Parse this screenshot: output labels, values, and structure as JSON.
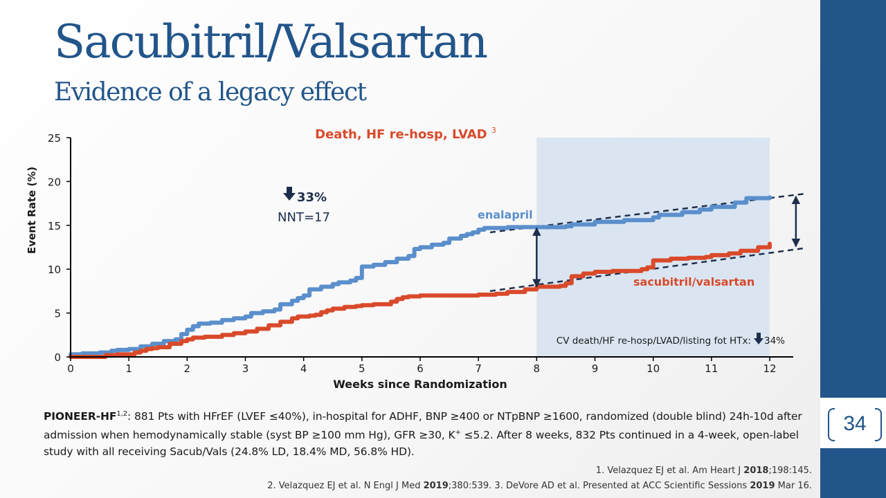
{
  "slide": {
    "title": "Sacubitril/Valsartan",
    "subtitle": "Evidence of a legacy effect",
    "page_number": "34"
  },
  "colors": {
    "title": "#22558a",
    "enalapril": "#5b8fcc",
    "sacubitril_valsartan": "#d94a2b",
    "highlight_region": "#dae5f1",
    "chart_title": "#d94a2b"
  },
  "annotations": {
    "reduction_value": "33%",
    "nnt": "NNT=17",
    "cv_death_text": "CV death/HF re-hosp/LVAD/listing fot HTx:",
    "cv_death_value": "34%"
  },
  "chart_data": {
    "type": "line",
    "title": "Death, HF re-hosp, LVAD",
    "title_superscript": "3",
    "xlabel": "Weeks since Randomization",
    "ylabel": "Event Rate (%)",
    "xlim": [
      0,
      12
    ],
    "ylim": [
      0,
      25
    ],
    "xticks": [
      0,
      1,
      2,
      3,
      4,
      5,
      6,
      7,
      8,
      9,
      10,
      11,
      12
    ],
    "yticks": [
      0,
      5,
      10,
      15,
      20,
      25
    ],
    "grid": false,
    "highlight_x_range": [
      8,
      12
    ],
    "series": [
      {
        "name": "enalapril",
        "x": [
          0,
          0.2,
          0.5,
          0.7,
          0.8,
          1.0,
          1.2,
          1.4,
          1.6,
          1.8,
          1.9,
          2.0,
          2.1,
          2.2,
          2.4,
          2.6,
          2.8,
          3.0,
          3.1,
          3.3,
          3.5,
          3.6,
          3.8,
          3.9,
          4.0,
          4.1,
          4.3,
          4.5,
          4.6,
          4.8,
          4.9,
          5.0,
          5.2,
          5.4,
          5.6,
          5.8,
          5.9,
          6.0,
          6.2,
          6.4,
          6.5,
          6.7,
          6.8,
          6.9,
          7.0,
          7.1,
          7.5,
          8.0,
          8.5,
          8.6,
          9.0,
          9.5,
          10.0,
          10.1,
          10.5,
          10.8,
          11.0,
          11.4,
          11.6,
          12.0
        ],
        "y": [
          0.3,
          0.4,
          0.5,
          0.7,
          0.8,
          0.9,
          1.2,
          1.5,
          1.8,
          2.0,
          2.6,
          3.1,
          3.5,
          3.8,
          3.9,
          4.2,
          4.4,
          4.6,
          5.0,
          5.2,
          5.4,
          6.0,
          6.4,
          6.7,
          7.0,
          7.7,
          8.0,
          8.3,
          8.5,
          8.7,
          9.0,
          10.3,
          10.5,
          10.8,
          11.2,
          11.5,
          12.3,
          12.5,
          12.8,
          13.0,
          13.5,
          13.8,
          14.0,
          14.2,
          14.5,
          14.7,
          14.8,
          14.8,
          14.9,
          15.1,
          15.4,
          15.6,
          15.9,
          16.2,
          16.5,
          16.8,
          17.1,
          17.6,
          18.1,
          18.2
        ]
      },
      {
        "name": "sacubitril/valsartan",
        "x": [
          0,
          0.3,
          0.5,
          0.6,
          0.8,
          0.9,
          1.0,
          1.1,
          1.2,
          1.3,
          1.4,
          1.5,
          1.7,
          1.9,
          2.0,
          2.1,
          2.3,
          2.5,
          2.6,
          2.8,
          3.0,
          3.2,
          3.4,
          3.6,
          3.8,
          3.9,
          4.0,
          4.1,
          4.2,
          4.3,
          4.4,
          4.5,
          4.7,
          4.9,
          5.0,
          5.2,
          5.3,
          5.5,
          5.6,
          5.7,
          5.8,
          6.0,
          6.5,
          7.0,
          7.3,
          7.5,
          7.8,
          8.0,
          8.2,
          8.4,
          8.5,
          8.6,
          8.8,
          9.0,
          9.3,
          9.6,
          9.8,
          9.9,
          10.0,
          10.3,
          10.6,
          10.9,
          11.0,
          11.3,
          11.5,
          11.8,
          12.0
        ],
        "y": [
          0.0,
          0.0,
          0.0,
          0.2,
          0.3,
          0.3,
          0.3,
          0.5,
          0.7,
          0.9,
          1.0,
          1.1,
          1.5,
          1.8,
          2.0,
          2.2,
          2.3,
          2.3,
          2.5,
          2.7,
          2.9,
          3.2,
          3.6,
          4.0,
          4.4,
          4.6,
          4.6,
          4.7,
          4.8,
          5.1,
          5.3,
          5.5,
          5.7,
          5.8,
          5.9,
          6.0,
          6.0,
          6.3,
          6.6,
          6.8,
          6.9,
          7.0,
          7.0,
          7.1,
          7.2,
          7.4,
          7.7,
          8.0,
          8.0,
          8.1,
          8.4,
          9.2,
          9.5,
          9.7,
          9.8,
          9.8,
          10.0,
          10.2,
          11.0,
          11.2,
          11.3,
          11.4,
          11.6,
          11.8,
          12.1,
          12.5,
          12.9
        ]
      }
    ],
    "trend_lines": [
      {
        "x": [
          7.2,
          12.6
        ],
        "y": [
          14.2,
          18.6
        ]
      },
      {
        "x": [
          7.2,
          12.6
        ],
        "y": [
          7.5,
          12.4
        ]
      }
    ],
    "difference_arrows": [
      {
        "x": 8,
        "y": [
          8.0,
          14.7
        ]
      },
      {
        "x": 12.45,
        "y": [
          12.6,
          18.3
        ]
      }
    ]
  },
  "description": {
    "study_name": "PIONEER-HF",
    "study_refs": "1,2",
    "text_1": ": 881 Pts with HFrEF (LVEF ≤40%), in-hospital for ADHF, BNP ≥400 or NTpBNP ≥1600, randomized (double blind) 24h-10d after admission when hemodynamically stable (syst BP ≥100 mm Hg), GFR ≥30, K",
    "text_1_sup": "+",
    "text_2": " ≤5.2. After 8 weeks, 832 Pts continued in a 4-week, open-label study with all receiving Sacub/Vals (24.8% LD, 18.4% MD, 56.8% HD)."
  },
  "references": {
    "ref1_a": "1. Velazquez EJ et al. Am Heart J ",
    "ref1_year": "2018",
    "ref1_b": ";198:145.",
    "ref2_a": "2. Velazquez EJ et al. N Engl J Med ",
    "ref2_year": "2019",
    "ref2_b": ";380:539. 3. DeVore AD et al. Presented at ACC Scientific Sessions ",
    "ref2_year2": "2019",
    "ref2_c": " Mar 16."
  }
}
